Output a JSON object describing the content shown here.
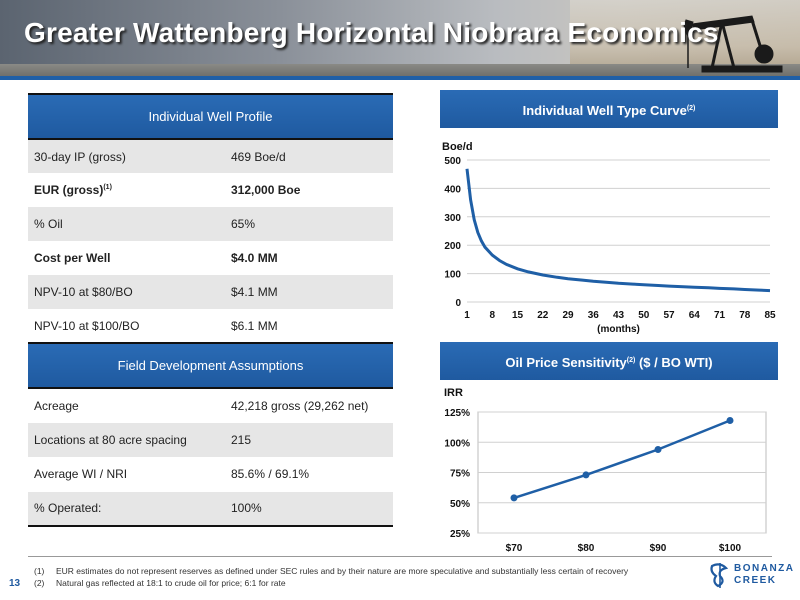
{
  "header": {
    "title": "Greater Wattenberg Horizontal Niobrara Economics"
  },
  "well_profile": {
    "heading": "Individual Well Profile",
    "rows": [
      {
        "label": "30-day IP (gross)",
        "sup": "",
        "value": "469 Boe/d"
      },
      {
        "label": "EUR (gross)",
        "sup": "(1)",
        "value": "312,000 Boe"
      },
      {
        "label": "% Oil",
        "sup": "",
        "value": "65%"
      },
      {
        "label": "Cost per Well",
        "sup": "",
        "value": "$4.0 MM"
      },
      {
        "label": "NPV-10 at $80/BO",
        "sup": "",
        "value": "$4.1 MM"
      },
      {
        "label": "NPV-10 at $100/BO",
        "sup": "",
        "value": "$6.1 MM"
      }
    ]
  },
  "field_dev": {
    "heading": "Field Development Assumptions",
    "rows": [
      {
        "label": "Acreage",
        "value": "42,218 gross (29,262 net)"
      },
      {
        "label": "Locations at 80 acre spacing",
        "value": "215"
      },
      {
        "label": "Average WI / NRI",
        "value": "85.6% / 69.1%"
      },
      {
        "label": "% Operated:",
        "value": "100%"
      }
    ]
  },
  "type_curve_panel": {
    "heading": "Individual Well Type Curve",
    "heading_sup": "(2)"
  },
  "price_panel": {
    "heading": "Oil Price Sensitivity",
    "heading_sup": "(2)",
    "heading_tail": " ($ / BO WTI)"
  },
  "chart_data": [
    {
      "type": "line",
      "ylabel": "Boe/d",
      "xlabel": "(months)",
      "x_ticks": [
        "1",
        "8",
        "15",
        "22",
        "29",
        "36",
        "43",
        "50",
        "57",
        "64",
        "71",
        "78",
        "85"
      ],
      "y_ticks": [
        "0",
        "100",
        "200",
        "300",
        "400",
        "500"
      ],
      "xlim": [
        1,
        85
      ],
      "ylim": [
        0,
        500
      ],
      "color": "#1f5fa6",
      "x": [
        1,
        2,
        3,
        4,
        5,
        6,
        8,
        10,
        12,
        15,
        18,
        22,
        26,
        29,
        33,
        36,
        40,
        43,
        47,
        50,
        54,
        57,
        61,
        64,
        68,
        71,
        75,
        78,
        82,
        85
      ],
      "y": [
        469,
        360,
        290,
        245,
        215,
        193,
        165,
        146,
        132,
        117,
        106,
        95,
        87,
        82,
        77,
        73,
        69,
        66,
        63,
        61,
        58,
        56,
        54,
        52,
        50,
        48,
        46,
        44,
        42,
        40
      ]
    },
    {
      "type": "line",
      "ylabel": "IRR",
      "categories": [
        "$70",
        "$80",
        "$90",
        "$100"
      ],
      "y_ticks": [
        "25%",
        "50%",
        "75%",
        "100%",
        "125%"
      ],
      "ylim": [
        25,
        125
      ],
      "color": "#1f5fa6",
      "values": [
        54,
        73,
        94,
        118
      ]
    }
  ],
  "footnotes": [
    {
      "num": "(1)",
      "text": "EUR estimates do not represent reserves as defined under SEC rules and by their nature are more speculative and substantially less certain of recovery"
    },
    {
      "num": "(2)",
      "text": "Natural gas reflected at 18:1 to crude oil for price; 6:1 for rate"
    }
  ],
  "page_number": "13",
  "logo": {
    "line1": "BONANZA",
    "line2": "CREEK"
  }
}
